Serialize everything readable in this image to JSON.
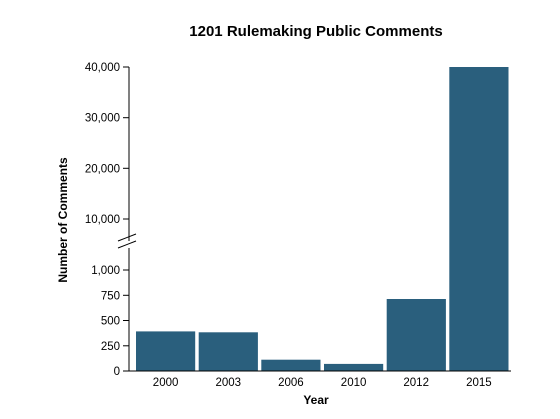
{
  "chart_data": {
    "type": "bar",
    "title": "1201 Rulemaking Public Comments",
    "xlabel": "Year",
    "ylabel": "Number of Comments",
    "categories": [
      "2000",
      "2003",
      "2006",
      "2010",
      "2012",
      "2015"
    ],
    "values": [
      392,
      383,
      112,
      70,
      713,
      40000
    ],
    "bar_color": "#2a5f7d",
    "grid": false,
    "legend": "none",
    "y_scale": "broken",
    "y_segments": [
      {
        "range": [
          0,
          1000
        ],
        "ticks": [
          0,
          250,
          500,
          750,
          1000
        ],
        "tick_labels": [
          "0",
          "250",
          "500",
          "750",
          "1,000"
        ]
      },
      {
        "range": [
          10000,
          40000
        ],
        "ticks": [
          10000,
          20000,
          30000,
          40000
        ],
        "tick_labels": [
          "10,000",
          "20,000",
          "30,000",
          "40,000"
        ]
      }
    ]
  }
}
